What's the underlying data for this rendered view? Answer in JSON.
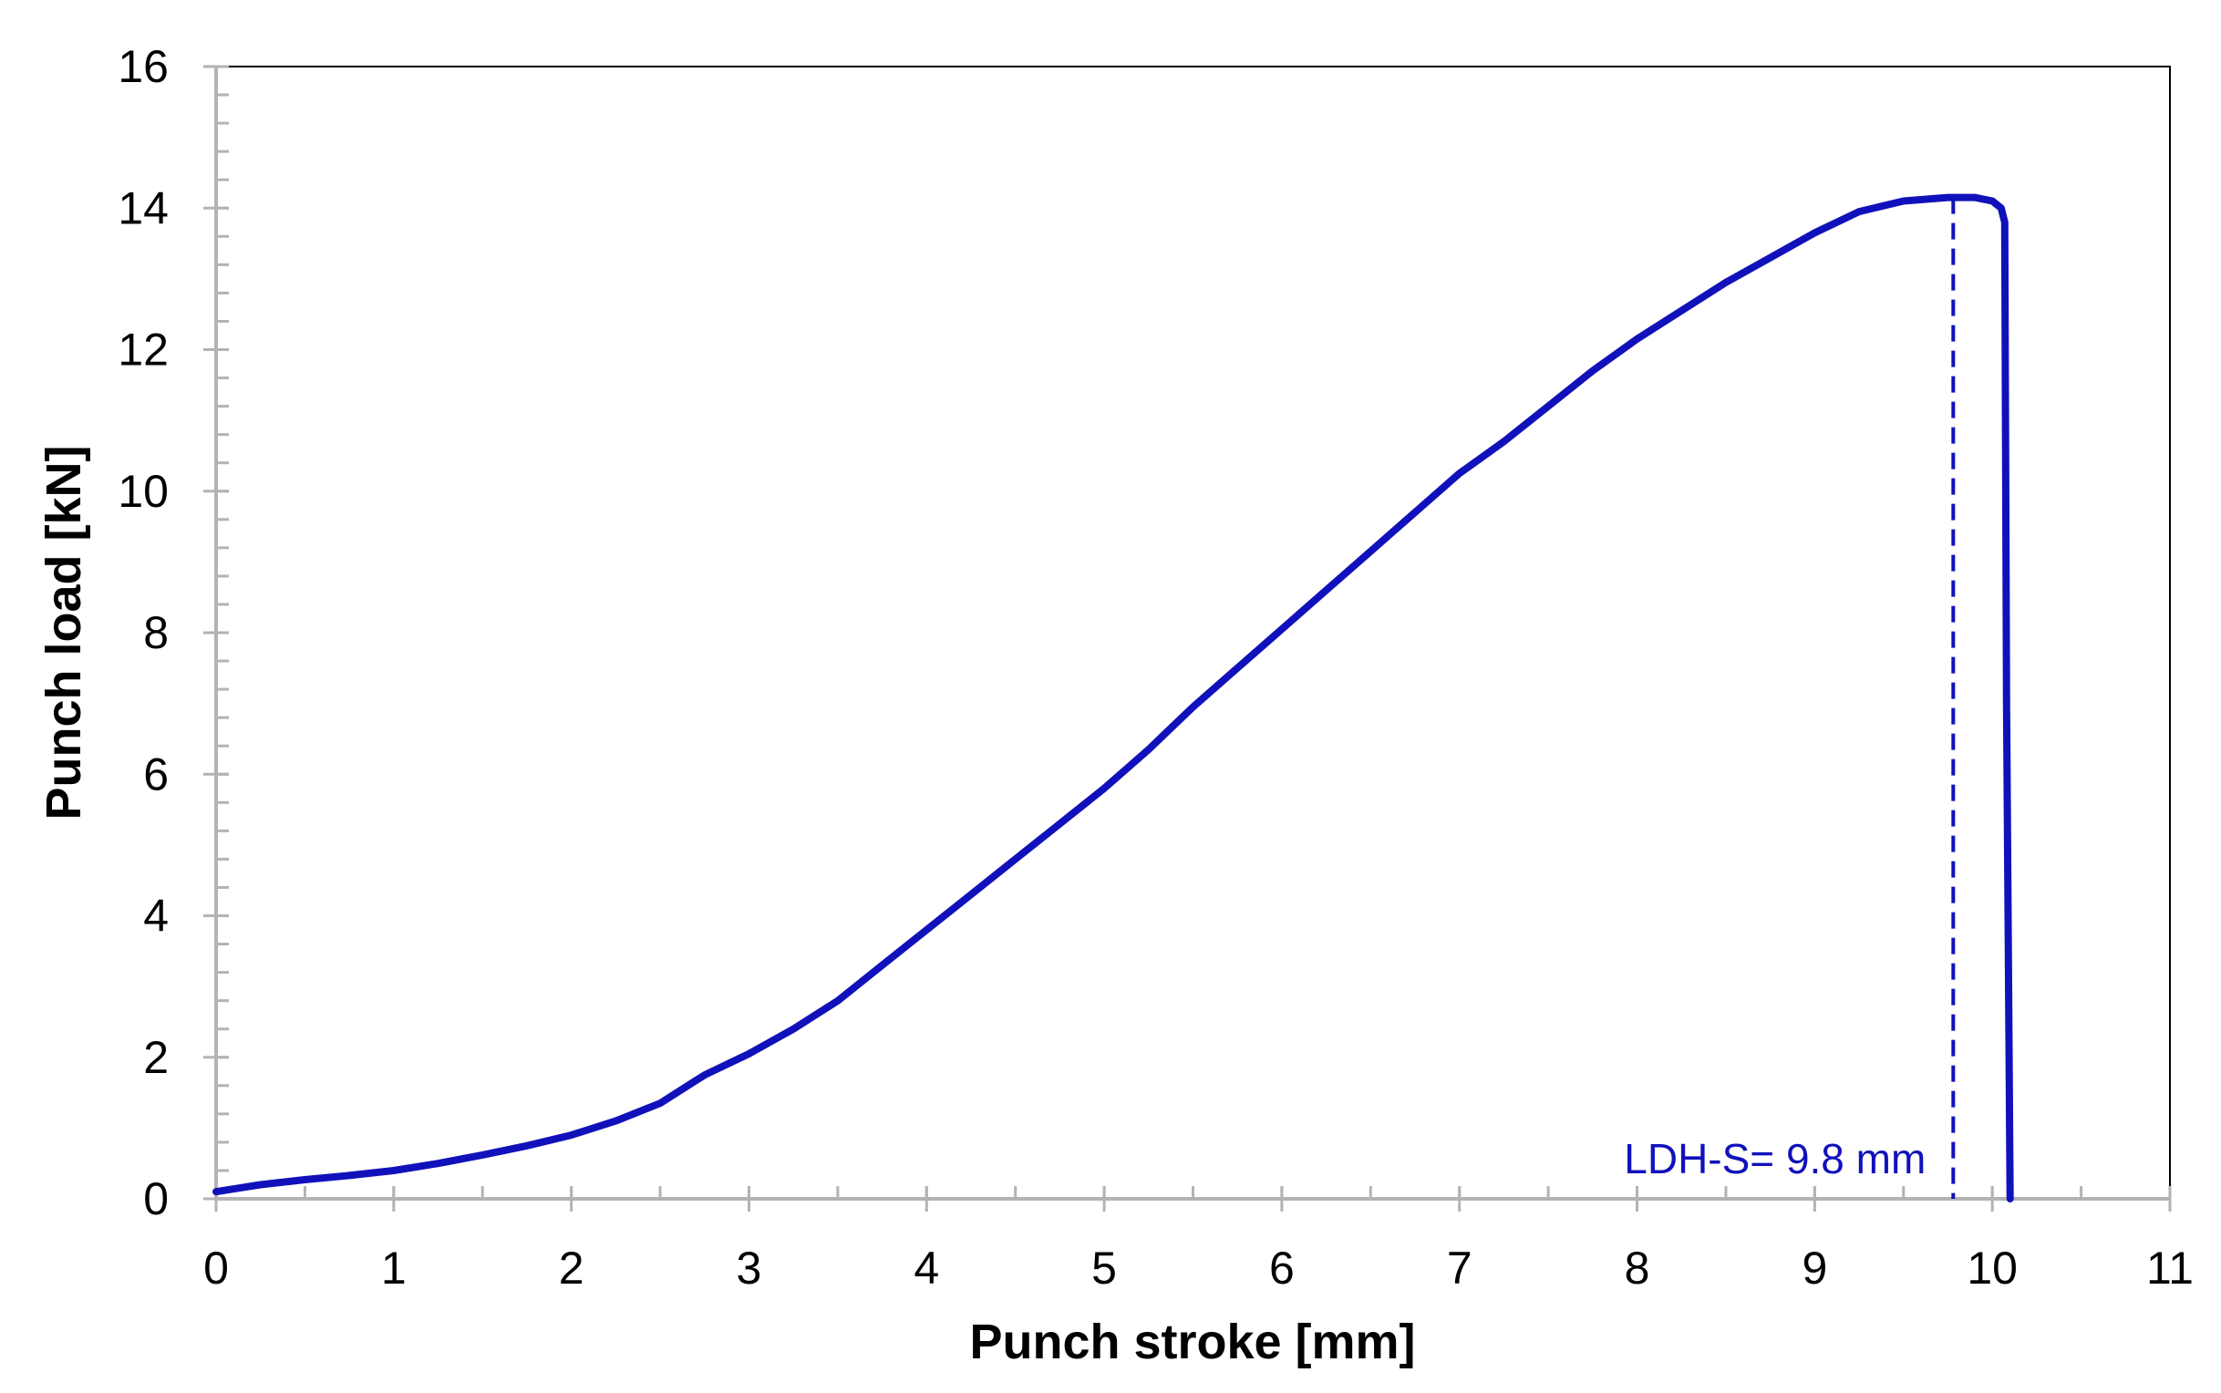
{
  "chart_data": {
    "type": "line",
    "title": "",
    "xlabel": "Punch stroke [mm]",
    "ylabel": "Punch load [kN]",
    "xlim": [
      0,
      11
    ],
    "ylim": [
      0,
      16
    ],
    "x_ticks": [
      0,
      1,
      2,
      3,
      4,
      5,
      6,
      7,
      8,
      9,
      10,
      11
    ],
    "x_tick_labels": [
      "0",
      "1",
      "2",
      "3",
      "4",
      "5",
      "6",
      "7",
      "8",
      "9",
      "10",
      "11"
    ],
    "y_ticks": [
      0,
      2,
      4,
      6,
      8,
      10,
      12,
      14,
      16
    ],
    "y_tick_labels": [
      "0",
      "2",
      "4",
      "6",
      "8",
      "10",
      "12",
      "14",
      "16"
    ],
    "y_minor_step": 0.4,
    "x_minor_step": 0.5,
    "grid": false,
    "line_color": "#1111bb",
    "series": [
      {
        "x": [
          0,
          0.25,
          0.5,
          0.75,
          1.0,
          1.25,
          1.5,
          1.75,
          2.0,
          2.25,
          2.5,
          2.75,
          3.0,
          3.25,
          3.5,
          3.75,
          4.0,
          4.25,
          4.5,
          4.75,
          5.0,
          5.25,
          5.5,
          5.75,
          6.0,
          6.25,
          6.5,
          6.75,
          7.0,
          7.25,
          7.5,
          7.75,
          8.0,
          8.25,
          8.5,
          8.75,
          9.0,
          9.25,
          9.5,
          9.75,
          9.9,
          10.0,
          10.05,
          10.07,
          10.08,
          10.1
        ],
        "y": [
          0.1,
          0.2,
          0.27,
          0.33,
          0.4,
          0.5,
          0.62,
          0.75,
          0.9,
          1.1,
          1.35,
          1.75,
          2.05,
          2.4,
          2.8,
          3.3,
          3.8,
          4.3,
          4.8,
          5.3,
          5.8,
          6.35,
          6.95,
          7.5,
          8.05,
          8.6,
          9.15,
          9.7,
          10.25,
          10.7,
          11.2,
          11.7,
          12.15,
          12.55,
          12.95,
          13.3,
          13.65,
          13.95,
          14.1,
          14.15,
          14.15,
          14.1,
          14.0,
          13.8,
          7.0,
          0.0
        ]
      }
    ],
    "annotations": [
      {
        "text": "LDH-S= 9.8 mm",
        "x": 9.78,
        "style": "dashed vertical line"
      }
    ]
  }
}
